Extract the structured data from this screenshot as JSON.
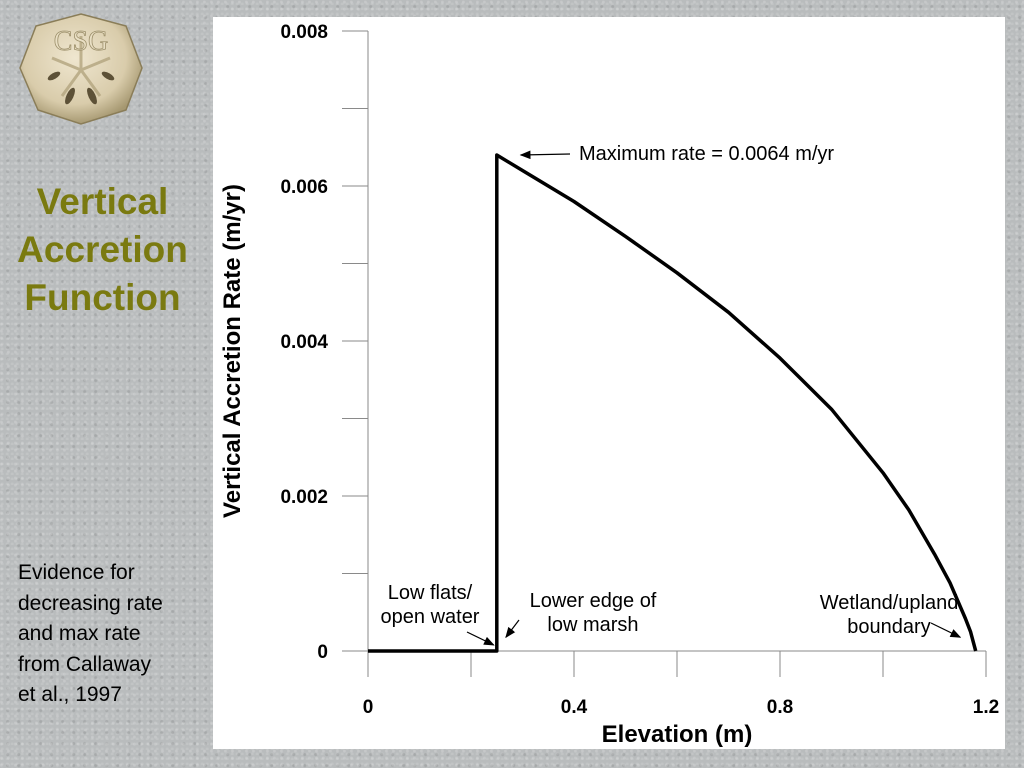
{
  "slide": {
    "logo_text": "CSG",
    "title": "Vertical\nAccretion\nFunction",
    "note": "Evidence for\ndecreasing rate\nand max rate\nfrom Callaway\net al., 1997"
  },
  "colors": {
    "title": "#7a7a10",
    "background": "#b9bcbd",
    "line": "#000000"
  },
  "chart_data": {
    "type": "line",
    "title": "",
    "xlabel": "Elevation (m)",
    "ylabel": "Vertical Accretion Rate (m/yr)",
    "xlim": [
      0,
      1.2
    ],
    "ylim": [
      0,
      0.008
    ],
    "x_ticks": [
      {
        "value": 0,
        "label": "0"
      },
      {
        "value": 0.4,
        "label": "0.4"
      },
      {
        "value": 0.8,
        "label": "0.8"
      },
      {
        "value": 1.2,
        "label": "1.2"
      }
    ],
    "x_minor_ticks": [
      0.2,
      0.6,
      1.0
    ],
    "y_ticks": [
      {
        "value": 0,
        "label": "0"
      },
      {
        "value": 0.002,
        "label": "0.002"
      },
      {
        "value": 0.004,
        "label": "0.004"
      },
      {
        "value": 0.006,
        "label": "0.006"
      },
      {
        "value": 0.008,
        "label": "0.008"
      }
    ],
    "y_minor_ticks": [
      0.001,
      0.003,
      0.005,
      0.007
    ],
    "grid": false,
    "series": [
      {
        "x": [
          0,
          0.25,
          0.25,
          0.3,
          0.4,
          0.5,
          0.6,
          0.7,
          0.8,
          0.9,
          1.0,
          1.05,
          1.1,
          1.13,
          1.16,
          1.17,
          1.18
        ],
        "y": [
          0,
          0,
          0.0064,
          0.0062,
          0.0058,
          0.00535,
          0.00488,
          0.00437,
          0.00378,
          0.00312,
          0.0023,
          0.00182,
          0.00125,
          0.00088,
          0.00042,
          0.00025,
          0
        ]
      }
    ],
    "annotations": [
      {
        "text": "Maximum rate = 0.0064 m/yr",
        "lines": [
          "Maximum rate = 0.0064 m/yr"
        ],
        "arrow_to": [
          0.25,
          0.0064
        ]
      },
      {
        "text": "Low flats/ open water",
        "lines": [
          "Low flats/",
          "open water"
        ],
        "arrow_to": [
          0.25,
          0
        ]
      },
      {
        "text": "Lower edge of low marsh",
        "lines": [
          "Lower edge of",
          "low marsh"
        ],
        "arrow_to": [
          0.26,
          0.0001
        ]
      },
      {
        "text": "Wetland/upland boundary",
        "lines": [
          "Wetland/upland",
          "boundary"
        ],
        "arrow_to": [
          1.15,
          0.0001
        ]
      }
    ]
  }
}
